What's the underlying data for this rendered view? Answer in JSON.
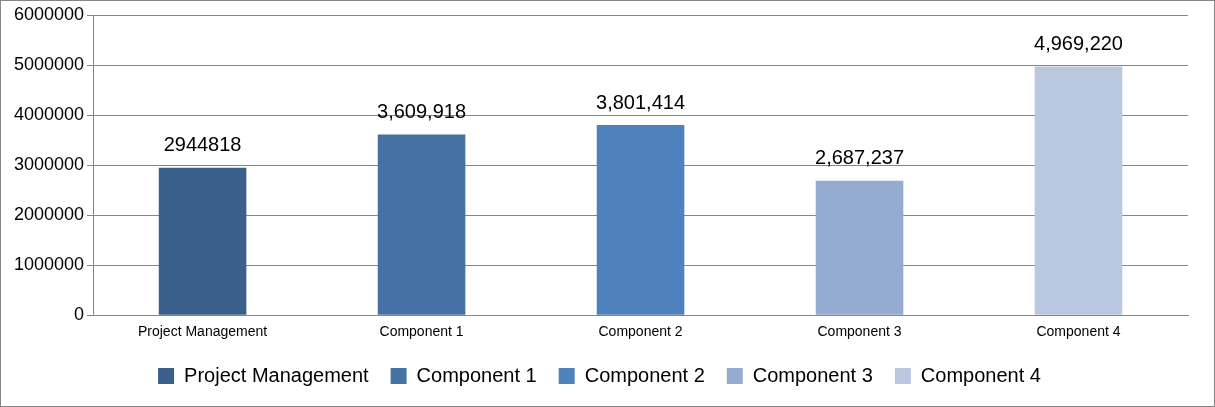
{
  "chart_data": {
    "type": "bar",
    "categories": [
      "Project Management",
      "Component 1",
      "Component 2",
      "Component 3",
      "Component 4"
    ],
    "series": [
      {
        "name": "Project Management",
        "color": "#3a5f8b",
        "values": [
          2944818,
          null,
          null,
          null,
          null
        ],
        "value_labels": [
          "2944818",
          null,
          null,
          null,
          null
        ]
      },
      {
        "name": "Component 1",
        "color": "#4671a5",
        "values": [
          null,
          3609918,
          null,
          null,
          null
        ],
        "value_labels": [
          null,
          "3,609,918",
          null,
          null,
          null
        ]
      },
      {
        "name": "Component 2",
        "color": "#4f81bd",
        "values": [
          null,
          null,
          3801414,
          null,
          null
        ],
        "value_labels": [
          null,
          null,
          "3,801,414",
          null,
          null
        ]
      },
      {
        "name": "Component 3",
        "color": "#95abd0",
        "values": [
          null,
          null,
          null,
          2687237,
          null
        ],
        "value_labels": [
          null,
          null,
          null,
          "2,687,237",
          null
        ]
      },
      {
        "name": "Component 4",
        "color": "#b9c7e0",
        "values": [
          null,
          null,
          null,
          null,
          4969220
        ],
        "value_labels": [
          null,
          null,
          null,
          null,
          "4,969,220"
        ]
      }
    ],
    "ylim": [
      0,
      6000000
    ],
    "yticks": [
      0,
      1000000,
      2000000,
      3000000,
      4000000,
      5000000,
      6000000
    ],
    "grid": "y",
    "legend": "bottom"
  }
}
